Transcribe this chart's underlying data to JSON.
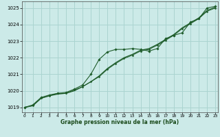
{
  "title": "Graphe pression niveau de la mer (hPa)",
  "background_color": "#cceae8",
  "grid_color": "#aad4d0",
  "line_color": "#1e5c2a",
  "x_ticks": [
    0,
    1,
    2,
    3,
    4,
    5,
    6,
    7,
    8,
    9,
    10,
    11,
    12,
    13,
    14,
    15,
    16,
    17,
    18,
    19,
    20,
    21,
    22,
    23
  ],
  "y_ticks": [
    1019,
    1020,
    1021,
    1022,
    1023,
    1024,
    1025
  ],
  "ylim": [
    1018.7,
    1025.4
  ],
  "xlim": [
    -0.3,
    23.3
  ],
  "series1_x": [
    0,
    1,
    2,
    3,
    4,
    5,
    6,
    7,
    8,
    9,
    10,
    11,
    12,
    13,
    14,
    15,
    16,
    17,
    18,
    19,
    20,
    21,
    22,
    23
  ],
  "series1_y": [
    1019.0,
    1019.1,
    1019.55,
    1019.7,
    1019.8,
    1019.85,
    1020.0,
    1020.25,
    1020.55,
    1020.9,
    1021.35,
    1021.7,
    1022.0,
    1022.2,
    1022.45,
    1022.55,
    1022.8,
    1023.1,
    1023.4,
    1023.8,
    1024.1,
    1024.4,
    1024.85,
    1025.05
  ],
  "series2_x": [
    0,
    1,
    2,
    3,
    4,
    5,
    6,
    7,
    8,
    9,
    10,
    11,
    12,
    13,
    14,
    15,
    16,
    17,
    18,
    19,
    20,
    21,
    22,
    23
  ],
  "series2_y": [
    1019.0,
    1019.15,
    1019.6,
    1019.75,
    1019.85,
    1019.9,
    1020.1,
    1020.35,
    1021.0,
    1021.9,
    1022.35,
    1022.5,
    1022.5,
    1022.55,
    1022.5,
    1022.4,
    1022.55,
    1023.15,
    1023.35,
    1023.5,
    1024.15,
    1024.35,
    1025.0,
    1025.1
  ],
  "series3_x": [
    0,
    1,
    2,
    3,
    4,
    5,
    6,
    7,
    8,
    9,
    10,
    11,
    12,
    13,
    14,
    15,
    16,
    17,
    18,
    19,
    20,
    21,
    22,
    23
  ],
  "series3_y": [
    1019.0,
    1019.1,
    1019.55,
    1019.7,
    1019.85,
    1019.85,
    1020.05,
    1020.25,
    1020.55,
    1020.85,
    1021.3,
    1021.65,
    1021.95,
    1022.15,
    1022.4,
    1022.5,
    1022.75,
    1023.05,
    1023.35,
    1023.75,
    1024.05,
    1024.35,
    1024.8,
    1025.0
  ]
}
